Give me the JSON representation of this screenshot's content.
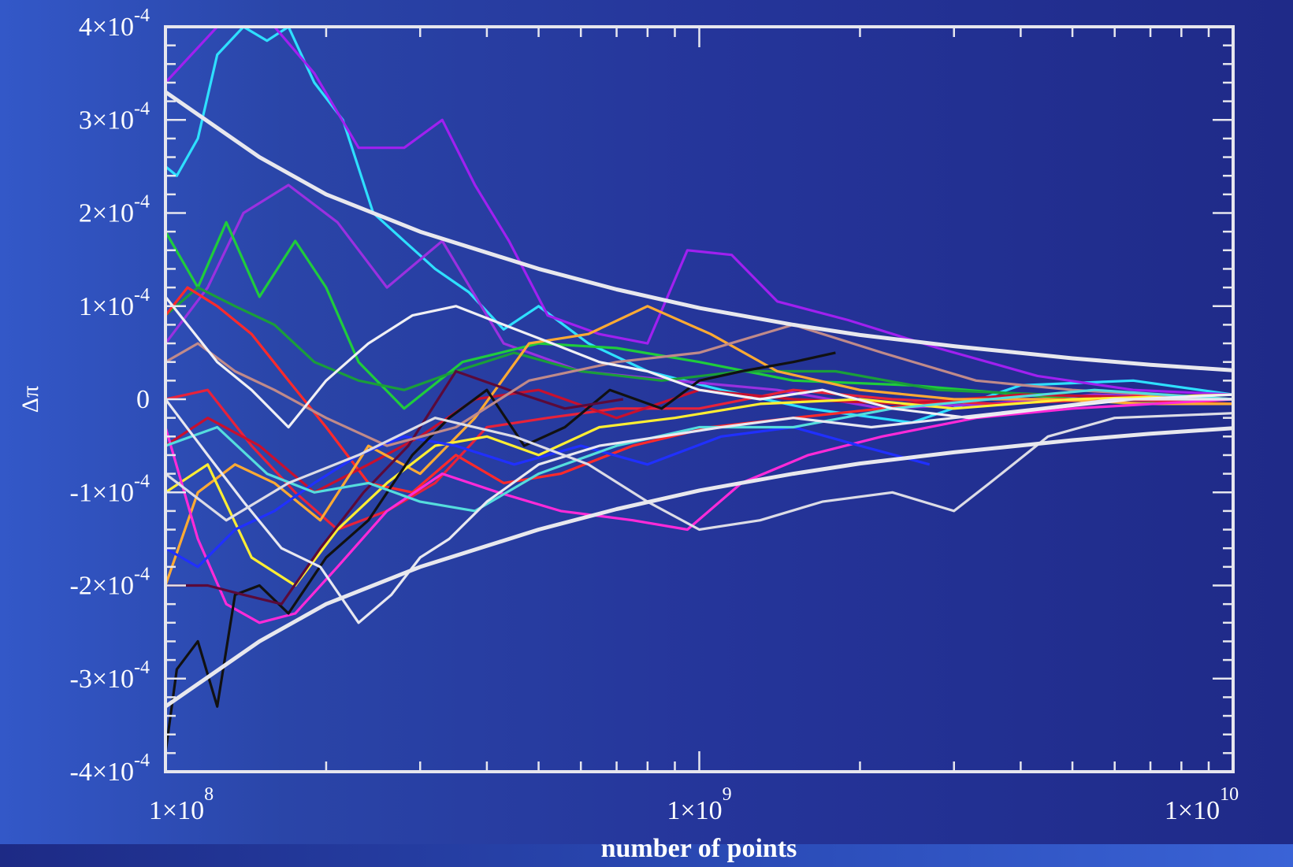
{
  "chart_data": {
    "type": "line",
    "title": "",
    "xlabel": "number of points",
    "ylabel": "Δπ",
    "x_scale": "log",
    "xlim": [
      100000000,
      10000000000
    ],
    "ylim": [
      -0.0004,
      0.0004
    ],
    "x_ticks": [
      {
        "value": 100000000,
        "mantissa": "1×10",
        "exp": "8"
      },
      {
        "value": 1000000000,
        "mantissa": "1×10",
        "exp": "9"
      },
      {
        "value": 10000000000,
        "mantissa": "1×10",
        "exp": "10"
      }
    ],
    "y_ticks": [
      {
        "value": 0.0004,
        "mantissa": "4×10",
        "exp": "-4"
      },
      {
        "value": 0.0003,
        "mantissa": "3×10",
        "exp": "-4"
      },
      {
        "value": 0.0002,
        "mantissa": "2×10",
        "exp": "-4"
      },
      {
        "value": 0.0001,
        "mantissa": "1×10",
        "exp": "-4"
      },
      {
        "value": 0,
        "mantissa": "0",
        "exp": ""
      },
      {
        "value": -0.0001,
        "mantissa": "-1×10",
        "exp": "-4"
      },
      {
        "value": -0.0002,
        "mantissa": "-2×10",
        "exp": "-4"
      },
      {
        "value": -0.0003,
        "mantissa": "-3×10",
        "exp": "-4"
      },
      {
        "value": -0.0004,
        "mantissa": "-4×10",
        "exp": "-4"
      }
    ],
    "grid": false,
    "legend": "none",
    "colors": {
      "frame": "#e6e6ee",
      "envelope": "#e8e8ee"
    },
    "envelope": {
      "x": [
        100000000,
        150000000,
        200000000,
        300000000,
        500000000,
        700000000,
        1000000000,
        1500000000,
        2000000000,
        3000000000,
        5000000000,
        7000000000,
        10000000000
      ],
      "upper": [
        0.00033,
        0.00026,
        0.00022,
        0.00018,
        0.00014,
        0.000118,
        9.8e-05,
        8e-05,
        6.9e-05,
        5.7e-05,
        4.4e-05,
        3.7e-05,
        3.1e-05
      ],
      "lower": [
        -0.00033,
        -0.00026,
        -0.00022,
        -0.00018,
        -0.00014,
        -0.000118,
        -9.8e-05,
        -8e-05,
        -6.9e-05,
        -5.7e-05,
        -4.4e-05,
        -3.7e-05,
        -3.1e-05
      ]
    },
    "series": [
      {
        "color": "#2ee0ff",
        "x": [
          100000000,
          105000000,
          115000000,
          125000000,
          140000000,
          155000000,
          170000000,
          190000000,
          215000000,
          245000000,
          280000000,
          320000000,
          370000000,
          430000000,
          500000000,
          620000000,
          800000000,
          1100000000,
          1600000000,
          2500000000,
          4000000000,
          6500000000,
          10000000000
        ],
        "y": [
          0.00025,
          0.00024,
          0.00028,
          0.00037,
          0.0004,
          0.000385,
          0.0004,
          0.00034,
          0.0003,
          0.0002,
          0.00017,
          0.00014,
          0.000115,
          7.5e-05,
          0.0001,
          6e-05,
          3e-05,
          1e-05,
          -1e-05,
          -2.5e-05,
          1.5e-05,
          2e-05,
          5e-06
        ]
      },
      {
        "color": "#a020f0",
        "x": [
          100000000,
          125000000,
          140000000,
          160000000,
          190000000,
          230000000,
          280000000,
          330000000,
          380000000,
          440000000,
          520000000,
          650000000,
          800000000,
          950000000,
          1150000000,
          1400000000,
          1900000000,
          2800000000,
          4300000000,
          6500000000,
          10000000000
        ],
        "y": [
          0.00034,
          0.0004,
          0.00041,
          0.0004,
          0.00035,
          0.00027,
          0.00027,
          0.0003,
          0.00023,
          0.00017,
          9e-05,
          7e-05,
          6e-05,
          0.00016,
          0.000155,
          0.000105,
          8.5e-05,
          5.5e-05,
          2.5e-05,
          1e-05,
          5e-06
        ]
      },
      {
        "color": "#9a30e0",
        "x": [
          100000000,
          120000000,
          140000000,
          170000000,
          210000000,
          260000000,
          330000000,
          430000000,
          600000000,
          900000000,
          1400000000,
          2200000000,
          3500000000,
          5500000000,
          10000000000
        ],
        "y": [
          6e-05,
          0.00012,
          0.0002,
          0.00023,
          0.00019,
          0.00012,
          0.00017,
          6e-05,
          3e-05,
          2e-05,
          1e-05,
          -1e-05,
          -5e-06,
          5e-06,
          0.0
        ]
      },
      {
        "color": "#1fcc3c",
        "x": [
          100000000,
          115000000,
          130000000,
          150000000,
          175000000,
          200000000,
          230000000,
          280000000,
          360000000,
          500000000,
          700000000,
          1000000000,
          1500000000,
          2500000000,
          4000000000,
          6500000000,
          10000000000
        ],
        "y": [
          0.00018,
          0.00012,
          0.00019,
          0.00011,
          0.00017,
          0.00012,
          4e-05,
          -1e-05,
          4e-05,
          6e-05,
          5.5e-05,
          4e-05,
          2e-05,
          1.5e-05,
          5e-06,
          -5e-06,
          0.0
        ]
      },
      {
        "color": "#1a9e3a",
        "x": [
          100000000,
          115000000,
          135000000,
          160000000,
          190000000,
          230000000,
          280000000,
          350000000,
          450000000,
          600000000,
          850000000,
          1200000000,
          1800000000,
          2800000000,
          4500000000,
          7000000000,
          10000000000
        ],
        "y": [
          9e-05,
          0.00012,
          0.0001,
          8e-05,
          4e-05,
          2e-05,
          1e-05,
          3e-05,
          5e-05,
          3e-05,
          2e-05,
          3e-05,
          3e-05,
          1e-05,
          5e-06,
          0.0,
          0.0
        ]
      },
      {
        "color": "#ff2a2a",
        "x": [
          100000000,
          110000000,
          125000000,
          145000000,
          170000000,
          200000000,
          240000000,
          290000000,
          350000000,
          430000000,
          550000000,
          750000000,
          1050000000,
          1500000000,
          2200000000,
          3300000000,
          5000000000,
          7500000000,
          10000000000
        ],
        "y": [
          9e-05,
          0.00012,
          0.0001,
          7e-05,
          2e-05,
          -3e-05,
          -9e-05,
          -0.0001,
          -6e-05,
          -9e-05,
          -8e-05,
          -5e-05,
          -3e-05,
          -2e-05,
          -1e-05,
          0.0,
          0.0,
          5e-06,
          0.0
        ]
      },
      {
        "color": "#e8223a",
        "x": [
          100000000,
          120000000,
          145000000,
          175000000,
          210000000,
          260000000,
          320000000,
          400000000,
          520000000,
          700000000,
          1000000000,
          1500000000,
          2300000000,
          3600000000,
          6000000000,
          10000000000
        ],
        "y": [
          0.0,
          1e-05,
          -5e-05,
          -0.0001,
          -0.00014,
          -0.00012,
          -9e-05,
          -3e-05,
          -2e-05,
          -1e-05,
          -1e-05,
          1e-05,
          0.0,
          -5e-06,
          0.0,
          -5e-06
        ]
      },
      {
        "color": "#c8102e",
        "x": [
          100000000,
          120000000,
          150000000,
          190000000,
          240000000,
          300000000,
          380000000,
          500000000,
          700000000,
          1000000000,
          1500000000,
          2400000000,
          4000000000,
          10000000000
        ],
        "y": [
          -5e-05,
          -2e-05,
          -5e-05,
          -0.0001,
          -7e-05,
          -4e-05,
          0.0,
          1e-05,
          -2e-05,
          1e-05,
          0.0,
          -5e-06,
          5e-06,
          0.0
        ]
      },
      {
        "color": "#ffaa33",
        "x": [
          100000000,
          115000000,
          135000000,
          160000000,
          195000000,
          240000000,
          300000000,
          380000000,
          480000000,
          620000000,
          800000000,
          1050000000,
          1400000000,
          2000000000,
          3000000000,
          4500000000,
          7000000000,
          10000000000
        ],
        "y": [
          -0.0002,
          -0.0001,
          -7e-05,
          -9e-05,
          -0.00013,
          -5e-05,
          -8e-05,
          -2e-05,
          6e-05,
          7e-05,
          0.0001,
          7e-05,
          3e-05,
          1e-05,
          0.0,
          0.0,
          -5e-06,
          -5e-06
        ]
      },
      {
        "color": "#ffee33",
        "x": [
          100000000,
          120000000,
          145000000,
          175000000,
          210000000,
          260000000,
          320000000,
          400000000,
          500000000,
          650000000,
          900000000,
          1300000000,
          2000000000,
          3000000000,
          5000000000,
          10000000000
        ],
        "y": [
          -0.0001,
          -7e-05,
          -0.00017,
          -0.0002,
          -0.00014,
          -9e-05,
          -5e-05,
          -4e-05,
          -6e-05,
          -3e-05,
          -2e-05,
          -5e-06,
          0.0,
          -1e-05,
          0.0,
          5e-06
        ]
      },
      {
        "color": "#ff2ad8",
        "x": [
          100000000,
          115000000,
          130000000,
          150000000,
          175000000,
          210000000,
          260000000,
          330000000,
          420000000,
          550000000,
          750000000,
          950000000,
          1200000000,
          1600000000,
          2200000000,
          3300000000,
          5000000000,
          10000000000
        ],
        "y": [
          -3e-05,
          -0.00015,
          -0.00022,
          -0.00024,
          -0.00023,
          -0.00018,
          -0.00012,
          -8e-05,
          -0.0001,
          -0.00012,
          -0.00013,
          -0.00014,
          -9e-05,
          -6e-05,
          -4e-05,
          -2e-05,
          -1e-05,
          0.0
        ]
      },
      {
        "color": "#2030ff",
        "x": [
          100000000,
          115000000,
          135000000,
          160000000,
          190000000,
          230000000,
          280000000,
          350000000,
          450000000,
          600000000,
          800000000,
          1100000000,
          1500000000,
          2000000000,
          2700000000
        ],
        "y": [
          -0.00016,
          -0.00018,
          -0.00014,
          -0.00012,
          -9e-05,
          -6e-05,
          -4e-05,
          -5e-05,
          -7e-05,
          -5e-05,
          -7e-05,
          -4e-05,
          -3e-05,
          -5e-05,
          -7e-05
        ]
      },
      {
        "color": "#111111",
        "x": [
          100000000,
          105000000,
          115000000,
          125000000,
          135000000,
          150000000,
          170000000,
          200000000,
          240000000,
          290000000,
          340000000,
          400000000,
          470000000,
          560000000,
          680000000,
          850000000,
          1000000000,
          1200000000,
          1500000000,
          1800000000
        ],
        "y": [
          -0.00038,
          -0.00029,
          -0.00026,
          -0.00033,
          -0.00021,
          -0.0002,
          -0.00023,
          -0.00017,
          -0.00013,
          -6e-05,
          -2e-05,
          1e-05,
          -5e-05,
          -3e-05,
          1e-05,
          -1e-05,
          2e-05,
          3e-05,
          4e-05,
          5e-05
        ]
      },
      {
        "color": "#5a0a3a",
        "x": [
          100000000,
          120000000,
          140000000,
          165000000,
          195000000,
          235000000,
          285000000,
          350000000,
          440000000,
          560000000,
          720000000
        ],
        "y": [
          -0.0002,
          -0.0002,
          -0.00021,
          -0.00022,
          -0.00016,
          -0.0001,
          -5e-05,
          3e-05,
          1e-05,
          -1e-05,
          0.0
        ]
      },
      {
        "color": "#c08a8a",
        "x": [
          100000000,
          115000000,
          135000000,
          160000000,
          200000000,
          260000000,
          350000000,
          480000000,
          700000000,
          1000000000,
          1500000000,
          2200000000,
          3300000000,
          5000000000,
          10000000000
        ],
        "y": [
          4e-05,
          6e-05,
          3e-05,
          1e-05,
          -2e-05,
          -5e-05,
          -3e-05,
          2e-05,
          4e-05,
          5e-05,
          8e-05,
          5e-05,
          2e-05,
          1e-05,
          0.0
        ]
      },
      {
        "color": "#55dddd",
        "x": [
          100000000,
          125000000,
          155000000,
          190000000,
          240000000,
          300000000,
          380000000,
          500000000,
          700000000,
          1000000000,
          1500000000,
          2300000000,
          3500000000,
          5500000000,
          10000000000
        ],
        "y": [
          -5e-05,
          -3e-05,
          -8e-05,
          -0.0001,
          -9e-05,
          -0.00011,
          -0.00012,
          -8e-05,
          -5e-05,
          -3e-05,
          -3e-05,
          -1e-05,
          0.0,
          1e-05,
          0.0
        ]
      },
      {
        "color": "#f0f0f5",
        "x": [
          100000000,
          110000000,
          125000000,
          145000000,
          170000000,
          200000000,
          240000000,
          290000000,
          350000000,
          430000000,
          530000000,
          650000000,
          800000000,
          1000000000,
          1300000000,
          1700000000,
          2300000000,
          3200000000,
          4500000000,
          6500000000,
          10000000000
        ],
        "y": [
          0.00011,
          8e-05,
          4e-05,
          1e-05,
          -3e-05,
          2e-05,
          6e-05,
          9e-05,
          0.0001,
          8e-05,
          6e-05,
          4e-05,
          3e-05,
          1e-05,
          0.0,
          1e-05,
          -1e-05,
          -2e-05,
          -1e-05,
          0.0,
          5e-06
        ]
      },
      {
        "color": "#e8e8f0",
        "x": [
          100000000,
          120000000,
          140000000,
          165000000,
          195000000,
          230000000,
          265000000,
          300000000,
          340000000,
          400000000,
          500000000,
          650000000,
          850000000,
          1100000000,
          1500000000,
          2100000000,
          3000000000,
          4300000000,
          6000000000,
          10000000000
        ],
        "y": [
          0.0,
          -6e-05,
          -0.00011,
          -0.00016,
          -0.00018,
          -0.00024,
          -0.00021,
          -0.00017,
          -0.00015,
          -0.00011,
          -7e-05,
          -5e-05,
          -4e-05,
          -3e-05,
          -2e-05,
          -3e-05,
          -2e-05,
          -1e-05,
          0.0,
          0.0
        ]
      },
      {
        "color": "#dcdce6",
        "x": [
          100000000,
          130000000,
          170000000,
          230000000,
          320000000,
          450000000,
          620000000,
          800000000,
          1000000000,
          1300000000,
          1700000000,
          2300000000,
          3000000000,
          3500000000,
          4500000000,
          6000000000,
          10000000000
        ],
        "y": [
          -8e-05,
          -0.00013,
          -9e-05,
          -6e-05,
          -2e-05,
          -4e-05,
          -7e-05,
          -0.00011,
          -0.00014,
          -0.00013,
          -0.00011,
          -0.0001,
          -0.00012,
          -9e-05,
          -4e-05,
          -2e-05,
          -1.5e-05
        ]
      }
    ]
  }
}
